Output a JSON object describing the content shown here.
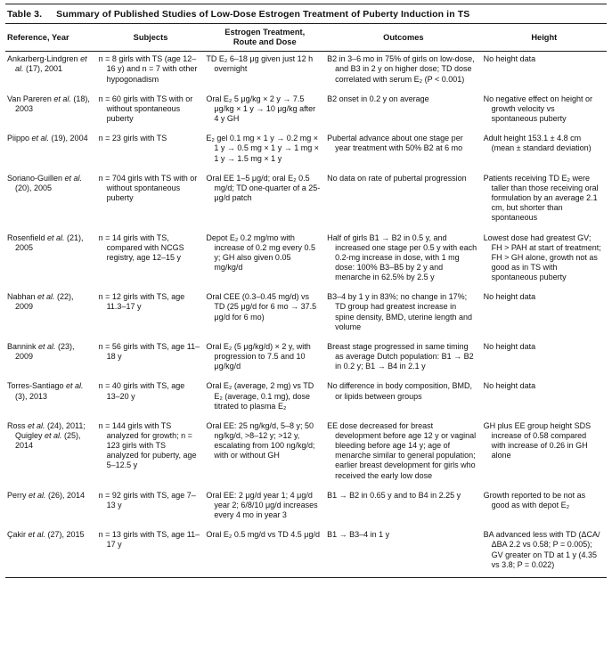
{
  "table": {
    "label": "Table 3.",
    "title": "Summary of Published Studies of Low-Dose Estrogen Treatment of Puberty Induction in TS",
    "columns": [
      "Reference, Year",
      "Subjects",
      "Estrogen Treatment,\nRoute and Dose",
      "Outcomes",
      "Height"
    ],
    "rows": [
      {
        "reference": [
          {
            "t": "Ankarberg-Lindgren "
          },
          {
            "t": "et al.",
            "i": true
          },
          {
            "t": " (17), 2001"
          }
        ],
        "subjects": "n = 8 girls with TS (age 12–16 y) and n = 7 with other hypogonadism",
        "treatment": "TD E₂ 6–18 μg given just 12 h overnight",
        "outcomes": "B2 in 3–6 mo in 75% of girls on low-dose, and B3 in 2 y on higher dose; TD dose correlated with serum E₂ (P < 0.001)",
        "height": "No height data"
      },
      {
        "reference": [
          {
            "t": "Van Pareren "
          },
          {
            "t": "et al.",
            "i": true
          },
          {
            "t": " (18), 2003"
          }
        ],
        "subjects": "n = 60 girls with TS with or without spontaneous puberty",
        "treatment": "Oral E₂ 5 μg/kg × 2 y → 7.5 μg/kg × 1 y → 10 μg/kg after 4 y GH",
        "outcomes": "B2 onset in 0.2 y on average",
        "height": "No negative effect on height or growth velocity vs spontaneous puberty"
      },
      {
        "reference": [
          {
            "t": "Piippo "
          },
          {
            "t": "et al.",
            "i": true
          },
          {
            "t": " (19), 2004"
          }
        ],
        "subjects": "n = 23 girls with TS",
        "treatment": "E₂ gel 0.1 mg × 1 y → 0.2 mg × 1 y → 0.5 mg × 1 y → 1 mg × 1 y → 1.5 mg × 1 y",
        "outcomes": "Pubertal advance about one stage per year treatment with 50% B2 at 6 mo",
        "height": "Adult height 153.1 ± 4.8 cm (mean ± standard deviation)"
      },
      {
        "reference": [
          {
            "t": "Soriano-Guillen "
          },
          {
            "t": "et al.",
            "i": true
          },
          {
            "t": " (20), 2005"
          }
        ],
        "subjects": "n = 704 girls with TS with or without spontaneous puberty",
        "treatment": "Oral EE 1–5 μg/d; oral E₂ 0.5 mg/d; TD one-quarter of a 25-μg/d patch",
        "outcomes": "No data on rate of pubertal progression",
        "height": "Patients receiving TD E₂ were taller than those receiving oral formulation by an average 2.1 cm, but shorter than spontaneous"
      },
      {
        "reference": [
          {
            "t": "Rosenfield "
          },
          {
            "t": "et al.",
            "i": true
          },
          {
            "t": " (21), 2005"
          }
        ],
        "subjects": "n = 14 girls with TS, compared with NCGS registry, age 12–15 y",
        "treatment": "Depot E₂ 0.2 mg/mo with increase of 0.2 mg every 0.5 y; GH also given 0.05 mg/kg/d",
        "outcomes": "Half of girls B1 → B2 in 0.5 y, and increased one stage per 0.5 y with each 0.2-mg increase in dose, with 1 mg dose: 100% B3–B5 by 2 y and menarche in 62.5% by 2.5 y",
        "height": "Lowest dose had greatest GV; FH > PAH at start of treatment; FH > GH alone, growth not as good as in TS with spontaneous puberty"
      },
      {
        "reference": [
          {
            "t": "Nabhan "
          },
          {
            "t": "et al.",
            "i": true
          },
          {
            "t": " (22), 2009"
          }
        ],
        "subjects": "n = 12 girls with TS, age 11.3–17 y",
        "treatment": "Oral CEE (0.3–0.45 mg/d) vs TD (25 μg/d for 6 mo → 37.5 μg/d for 6 mo)",
        "outcomes": "B3–4 by 1 y in 83%; no change in 17%; TD group had greatest increase in spine density, BMD, uterine length and volume",
        "height": "No height data"
      },
      {
        "reference": [
          {
            "t": "Bannink "
          },
          {
            "t": "et al.",
            "i": true
          },
          {
            "t": " (23), 2009"
          }
        ],
        "subjects": "n = 56 girls with TS, age 11–18 y",
        "treatment": "Oral E₂ (5 μg/kg/d) × 2 y, with progression to 7.5 and 10 μg/kg/d",
        "outcomes": "Breast stage progressed in same timing as average Dutch population: B1 → B2 in 0.2 y; B1 → B4 in 2.1 y",
        "height": "No height data"
      },
      {
        "reference": [
          {
            "t": "Torres-Santiago "
          },
          {
            "t": "et al.",
            "i": true
          },
          {
            "t": " (3), 2013"
          }
        ],
        "subjects": "n = 40 girls with TS, age 13–20 y",
        "treatment": "Oral E₂ (average, 2 mg) vs TD E₂ (average, 0.1 mg), dose titrated to plasma E₂",
        "outcomes": "No difference in body composition, BMD, or lipids between groups",
        "height": "No height data"
      },
      {
        "reference": [
          {
            "t": "Ross "
          },
          {
            "t": "et al.",
            "i": true
          },
          {
            "t": " (24), 2011; Quigley "
          },
          {
            "t": "et al.",
            "i": true
          },
          {
            "t": " (25), 2014"
          }
        ],
        "subjects": "n = 144 girls with TS analyzed for growth; n = 123 girls with TS analyzed for puberty, age 5–12.5 y",
        "treatment": "Oral EE: 25 ng/kg/d, 5–8 y; 50 ng/kg/d, >8–12 y; >12 y, escalating from 100 ng/kg/d; with or without GH",
        "outcomes": "EE dose decreased for breast development before age 12 y or vaginal bleeding before age 14 y; age of menarche similar to general population; earlier breast development for girls who received the early low dose",
        "height": "GH plus EE group height SDS increase of 0.58 compared with increase of 0.26 in GH alone"
      },
      {
        "reference": [
          {
            "t": "Perry "
          },
          {
            "t": "et al.",
            "i": true
          },
          {
            "t": " (26), 2014"
          }
        ],
        "subjects": "n = 92 girls with TS, age 7–13 y",
        "treatment": "Oral EE: 2 μg/d year 1; 4 μg/d year 2; 6/8/10 μg/d increases every 4 mo in year 3",
        "outcomes": "B1 → B2 in 0.65 y and to B4 in 2.25 y",
        "height": "Growth reported to be not as good as with depot E₂"
      },
      {
        "reference": [
          {
            "t": "Çakir "
          },
          {
            "t": "et al.",
            "i": true
          },
          {
            "t": " (27), 2015"
          }
        ],
        "subjects": "n = 13 girls with TS, age 11–17 y",
        "treatment": "Oral E₂ 0.5 mg/d vs TD 4.5 μg/d",
        "outcomes": "B1 → B3–4 in 1 y",
        "height": "BA advanced less with TD (ΔCA/ΔBA 2.2 vs 0.58; P = 0.005); GV greater on TD at 1 y (4.35 vs 3.8; P = 0.022)"
      }
    ]
  }
}
